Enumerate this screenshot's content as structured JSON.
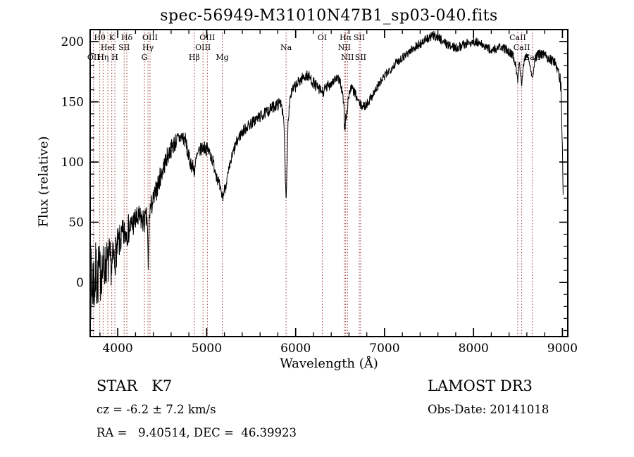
{
  "title": "spec-56949-M31010N47B1_sp03-040.fits",
  "footer": {
    "class_label": "STAR   K7",
    "survey": "LAMOST DR3",
    "cz": "cz = -6.2 ± 7.2 km/s",
    "obs_date": "Obs-Date: 20141018",
    "ra_dec": "RA =   9.40514, DEC =  46.39923"
  },
  "colors": {
    "spectrum": "#000000",
    "line_marker": "#993333",
    "axis": "#000000",
    "background": "#ffffff"
  },
  "chart_data": {
    "type": "line",
    "title": "spec-56949-M31010N47B1_sp03-040.fits",
    "xlabel": "Wavelength (Å)",
    "ylabel": "Flux (relative)",
    "xlim": [
      3690,
      9060
    ],
    "ylim": [
      -45,
      210
    ],
    "xticks": [
      4000,
      5000,
      6000,
      7000,
      8000,
      9000
    ],
    "yticks": [
      0,
      50,
      100,
      150,
      200
    ],
    "x_minor_step": 200,
    "y_minor_step": 10,
    "grid": false,
    "legend": "none",
    "noise_seed": 7,
    "sample_step": 3,
    "spectral_lines": [
      {
        "label": "OII",
        "wl": 3727,
        "row": 2
      },
      {
        "label": "Hθ",
        "wl": 3798,
        "row": 0
      },
      {
        "label": "Hη",
        "wl": 3835,
        "row": 2
      },
      {
        "label": "HeI",
        "wl": 3889,
        "row": 1
      },
      {
        "label": "K",
        "wl": 3933,
        "row": 0
      },
      {
        "label": "H",
        "wl": 3968,
        "row": 2
      },
      {
        "label": "SII",
        "wl": 4072,
        "row": 1
      },
      {
        "label": "Hδ",
        "wl": 4102,
        "row": 0
      },
      {
        "label": "G",
        "wl": 4300,
        "row": 2
      },
      {
        "label": "Hγ",
        "wl": 4340,
        "row": 1
      },
      {
        "label": "OIII",
        "wl": 4363,
        "row": 0
      },
      {
        "label": "Hβ",
        "wl": 4861,
        "row": 2
      },
      {
        "label": "OIII",
        "wl": 4959,
        "row": 1
      },
      {
        "label": "OIII",
        "wl": 5007,
        "row": 0
      },
      {
        "label": "Mg",
        "wl": 5175,
        "row": 2
      },
      {
        "label": "Na",
        "wl": 5893,
        "row": 1
      },
      {
        "label": "OI",
        "wl": 6300,
        "row": 0
      },
      {
        "label": "NII",
        "wl": 6548,
        "row": 1
      },
      {
        "label": "Hα",
        "wl": 6563,
        "row": 0
      },
      {
        "label": "NII",
        "wl": 6583,
        "row": 2
      },
      {
        "label": "SII",
        "wl": 6716,
        "row": 0
      },
      {
        "label": "SII",
        "wl": 6731,
        "row": 2
      },
      {
        "label": "CaII",
        "wl": 8498,
        "row": 0
      },
      {
        "label": "CaII",
        "wl": 8542,
        "row": 1
      },
      {
        "label": "CaII",
        "wl": 8662,
        "row": 2
      }
    ],
    "spectrum_envelope": [
      [
        3695,
        0,
        32
      ],
      [
        3710,
        -6,
        32
      ],
      [
        3725,
        4,
        30
      ],
      [
        3740,
        -2,
        30
      ],
      [
        3755,
        8,
        28
      ],
      [
        3770,
        0,
        28
      ],
      [
        3785,
        10,
        26
      ],
      [
        3800,
        4,
        26
      ],
      [
        3815,
        14,
        24
      ],
      [
        3830,
        8,
        22
      ],
      [
        3845,
        16,
        21
      ],
      [
        3860,
        12,
        20
      ],
      [
        3875,
        18,
        19
      ],
      [
        3890,
        14,
        19
      ],
      [
        3905,
        20,
        18
      ],
      [
        3920,
        16,
        17
      ],
      [
        3935,
        12,
        17
      ],
      [
        3950,
        22,
        16
      ],
      [
        3965,
        18,
        16
      ],
      [
        3980,
        26,
        15
      ],
      [
        4000,
        30,
        15
      ],
      [
        4030,
        35,
        14
      ],
      [
        4060,
        39,
        14
      ],
      [
        4090,
        42,
        13
      ],
      [
        4120,
        44,
        13
      ],
      [
        4150,
        47,
        12
      ],
      [
        4180,
        50,
        12
      ],
      [
        4210,
        52,
        11
      ],
      [
        4240,
        53,
        11
      ],
      [
        4270,
        52,
        11
      ],
      [
        4300,
        50,
        10
      ],
      [
        4330,
        54,
        10
      ],
      [
        4338,
        30,
        8
      ],
      [
        4343,
        8,
        6
      ],
      [
        4350,
        40,
        9
      ],
      [
        4360,
        60,
        10
      ],
      [
        4400,
        68,
        9
      ],
      [
        4440,
        78,
        9
      ],
      [
        4480,
        88,
        9
      ],
      [
        4520,
        97,
        8
      ],
      [
        4560,
        105,
        8
      ],
      [
        4600,
        111,
        8
      ],
      [
        4640,
        116,
        8
      ],
      [
        4680,
        119,
        7
      ],
      [
        4720,
        121,
        7
      ],
      [
        4760,
        118,
        7
      ],
      [
        4800,
        103,
        7
      ],
      [
        4830,
        98,
        7
      ],
      [
        4861,
        93,
        7
      ],
      [
        4890,
        104,
        7
      ],
      [
        4920,
        109,
        6
      ],
      [
        4950,
        112,
        6
      ],
      [
        4980,
        112,
        6
      ],
      [
        5010,
        110,
        6
      ],
      [
        5040,
        107,
        6
      ],
      [
        5070,
        100,
        6
      ],
      [
        5100,
        93,
        6
      ],
      [
        5130,
        84,
        6
      ],
      [
        5160,
        74,
        5
      ],
      [
        5180,
        71,
        5
      ],
      [
        5200,
        77,
        5
      ],
      [
        5230,
        86,
        5
      ],
      [
        5260,
        96,
        5
      ],
      [
        5290,
        106,
        5
      ],
      [
        5320,
        113,
        5
      ],
      [
        5360,
        120,
        5
      ],
      [
        5400,
        125,
        5
      ],
      [
        5450,
        129,
        5
      ],
      [
        5500,
        132,
        5
      ],
      [
        5550,
        135,
        5
      ],
      [
        5600,
        138,
        5
      ],
      [
        5650,
        140,
        5
      ],
      [
        5700,
        143,
        5
      ],
      [
        5750,
        146,
        5
      ],
      [
        5800,
        148,
        5
      ],
      [
        5840,
        150,
        5
      ],
      [
        5870,
        130,
        4
      ],
      [
        5885,
        85,
        3
      ],
      [
        5893,
        70,
        3
      ],
      [
        5901,
        88,
        3
      ],
      [
        5915,
        135,
        4
      ],
      [
        5940,
        155,
        5
      ],
      [
        5970,
        160,
        5
      ],
      [
        6000,
        163,
        5
      ],
      [
        6040,
        167,
        5
      ],
      [
        6080,
        170,
        5
      ],
      [
        6120,
        172,
        5
      ],
      [
        6160,
        170,
        5
      ],
      [
        6200,
        166,
        5
      ],
      [
        6240,
        162,
        5
      ],
      [
        6280,
        159,
        5
      ],
      [
        6310,
        158,
        5
      ],
      [
        6350,
        162,
        5
      ],
      [
        6400,
        166,
        5
      ],
      [
        6450,
        169,
        4
      ],
      [
        6500,
        168,
        4
      ],
      [
        6540,
        150,
        6
      ],
      [
        6550,
        128,
        6
      ],
      [
        6563,
        135,
        6
      ],
      [
        6575,
        140,
        6
      ],
      [
        6590,
        152,
        5
      ],
      [
        6620,
        162,
        4
      ],
      [
        6660,
        158,
        4
      ],
      [
        6700,
        151,
        4
      ],
      [
        6730,
        147,
        4
      ],
      [
        6770,
        146,
        4
      ],
      [
        6810,
        149,
        4
      ],
      [
        6850,
        154,
        4
      ],
      [
        6900,
        160,
        4
      ],
      [
        6950,
        166,
        4
      ],
      [
        7000,
        171,
        4
      ],
      [
        7050,
        176,
        4
      ],
      [
        7100,
        180,
        4
      ],
      [
        7150,
        184,
        4
      ],
      [
        7200,
        187,
        4
      ],
      [
        7250,
        190,
        4
      ],
      [
        7300,
        193,
        4
      ],
      [
        7350,
        196,
        4
      ],
      [
        7400,
        198,
        4
      ],
      [
        7450,
        201,
        4
      ],
      [
        7500,
        203,
        4
      ],
      [
        7550,
        205,
        4
      ],
      [
        7600,
        204,
        4
      ],
      [
        7650,
        201,
        4
      ],
      [
        7700,
        198,
        4
      ],
      [
        7750,
        196,
        4
      ],
      [
        7800,
        195,
        4
      ],
      [
        7850,
        196,
        4
      ],
      [
        7900,
        198,
        4
      ],
      [
        7950,
        199,
        4
      ],
      [
        8000,
        200,
        4
      ],
      [
        8050,
        199,
        4
      ],
      [
        8100,
        197,
        4
      ],
      [
        8150,
        195,
        4
      ],
      [
        8200,
        193,
        4
      ],
      [
        8250,
        194,
        4
      ],
      [
        8300,
        195,
        4
      ],
      [
        8350,
        194,
        4
      ],
      [
        8400,
        192,
        4
      ],
      [
        8440,
        189,
        4
      ],
      [
        8470,
        182,
        3
      ],
      [
        8498,
        168,
        3
      ],
      [
        8515,
        184,
        3
      ],
      [
        8542,
        165,
        3
      ],
      [
        8570,
        186,
        3
      ],
      [
        8610,
        189,
        3
      ],
      [
        8640,
        180,
        3
      ],
      [
        8662,
        168,
        3
      ],
      [
        8690,
        186,
        4
      ],
      [
        8730,
        189,
        4
      ],
      [
        8770,
        190,
        4
      ],
      [
        8810,
        188,
        4
      ],
      [
        8850,
        186,
        4
      ],
      [
        8890,
        184,
        5
      ],
      [
        8930,
        181,
        5
      ],
      [
        8960,
        176,
        6
      ],
      [
        8985,
        160,
        7
      ],
      [
        9000,
        110,
        8
      ],
      [
        9010,
        58,
        6
      ]
    ]
  }
}
